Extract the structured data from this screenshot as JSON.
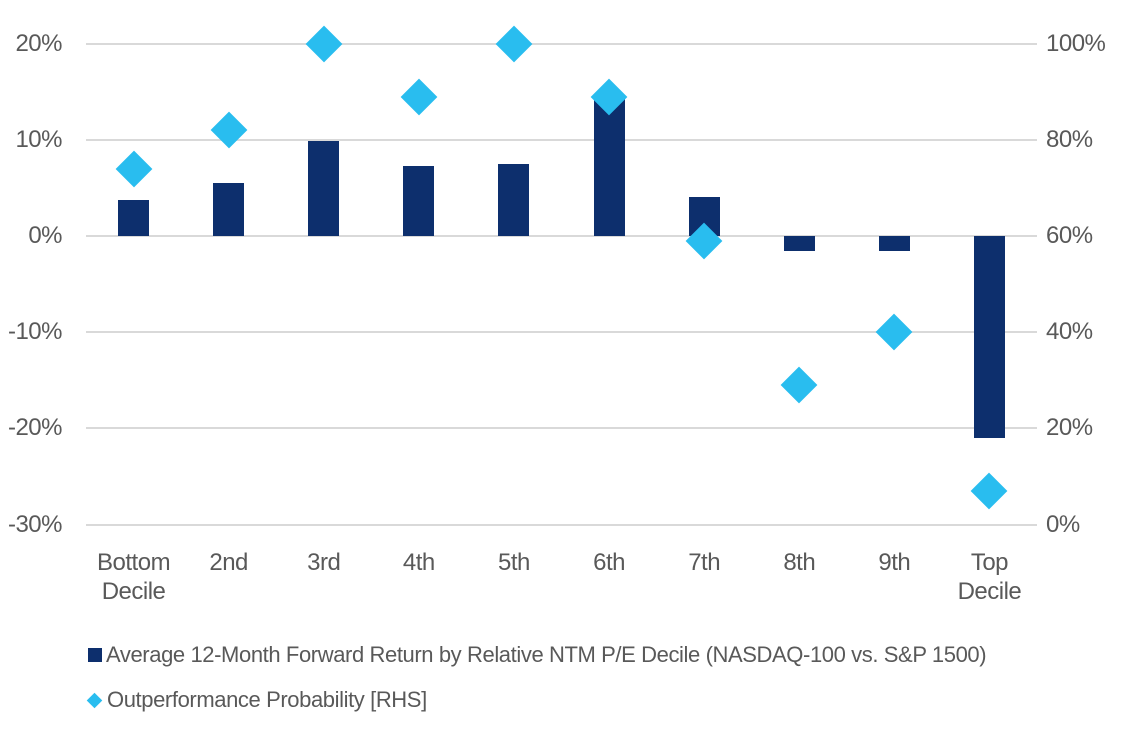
{
  "chart_data": {
    "type": "bar",
    "title": "",
    "xlabel": "",
    "ylabel": "",
    "grid": true,
    "legend_position": "bottom-left",
    "categories": [
      "Bottom\nDecile",
      "2nd",
      "3rd",
      "4th",
      "5th",
      "6th",
      "7th",
      "8th",
      "9th",
      "Top\nDecile"
    ],
    "series": [
      {
        "name": "Average 12-Month Forward Return by Relative NTM P/E Decile (NASDAQ-100 vs. S&P 1500)",
        "type": "bar",
        "axis": "left",
        "color": "#0d2f6d",
        "values": [
          3.8,
          5.5,
          9.9,
          7.3,
          7.5,
          14.5,
          4.1,
          -1.5,
          -1.5,
          -21.0
        ]
      },
      {
        "name": "Outperformance Probability [RHS]",
        "type": "scatter",
        "marker": "diamond",
        "axis": "right",
        "color": "#29bdef",
        "values": [
          74,
          82,
          100,
          89,
          100,
          89,
          59,
          29,
          40,
          7
        ]
      }
    ],
    "left_axis": {
      "min": -30,
      "max": 20,
      "tick_values": [
        20,
        10,
        0,
        -10,
        -20,
        -30
      ],
      "tick_labels": [
        "20%",
        "10%",
        "0%",
        "-10%",
        "-20%",
        "-30%"
      ]
    },
    "right_axis": {
      "min": 0,
      "max": 100,
      "tick_values": [
        100,
        80,
        60,
        40,
        20,
        0
      ],
      "tick_labels": [
        "100%",
        "80%",
        "60%",
        "40%",
        "20%",
        "0%"
      ]
    }
  },
  "colors": {
    "grid": "#d9d9d9",
    "text": "#595959",
    "background": "#ffffff",
    "bar": "#0d2f6d",
    "diamond": "#29bdef"
  }
}
